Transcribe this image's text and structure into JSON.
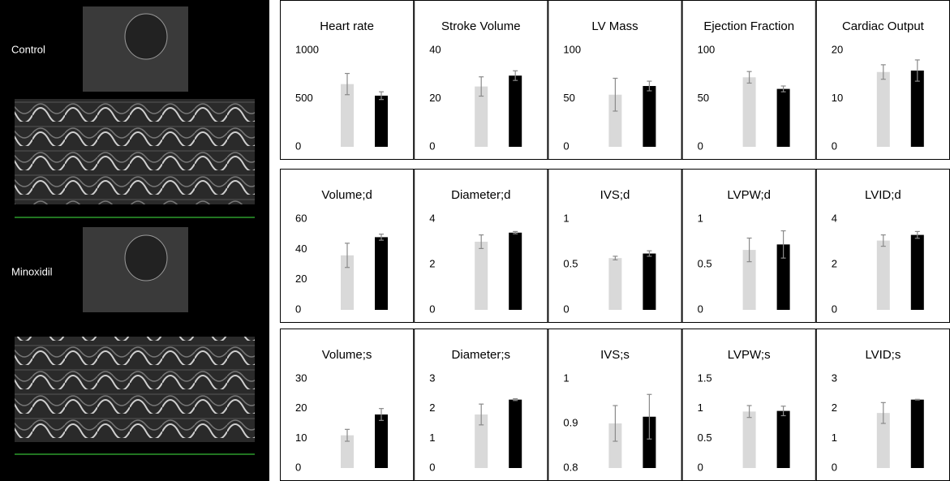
{
  "panel_labels": [
    "Control",
    "Minoxidil"
  ],
  "chart_data": [
    {
      "type": "bar",
      "title": "Heart rate",
      "categories": [
        null,
        null
      ],
      "values": [
        650,
        530
      ],
      "errors": [
        110,
        40
      ],
      "colors": [
        "#d9d9d9",
        "#000000"
      ],
      "ylim": [
        0,
        1000
      ],
      "yticks": [
        0,
        500,
        1000
      ]
    },
    {
      "type": "bar",
      "title": "Stroke Volume",
      "categories": [
        null,
        null
      ],
      "values": [
        25,
        29.5
      ],
      "errors": [
        4,
        2
      ],
      "colors": [
        "#d9d9d9",
        "#000000"
      ],
      "ylim": [
        0,
        40
      ],
      "yticks": [
        0,
        20,
        40
      ]
    },
    {
      "type": "bar",
      "title": "LV Mass",
      "categories": [
        null,
        null
      ],
      "values": [
        54,
        63
      ],
      "errors": [
        17,
        5
      ],
      "colors": [
        "#d9d9d9",
        "#000000"
      ],
      "ylim": [
        0,
        100
      ],
      "yticks": [
        0,
        50,
        100
      ]
    },
    {
      "type": "bar",
      "title": "Ejection Fraction",
      "categories": [
        null,
        null
      ],
      "values": [
        72,
        60
      ],
      "errors": [
        6,
        3
      ],
      "colors": [
        "#d9d9d9",
        "#000000"
      ],
      "ylim": [
        0,
        100
      ],
      "yticks": [
        0,
        50,
        100
      ]
    },
    {
      "type": "bar",
      "title": "Cardiac Output",
      "categories": [
        null,
        null
      ],
      "values": [
        15.5,
        15.8
      ],
      "errors": [
        1.5,
        2.2
      ],
      "colors": [
        "#d9d9d9",
        "#000000"
      ],
      "ylim": [
        0,
        20
      ],
      "yticks": [
        0,
        10,
        20
      ]
    },
    {
      "type": "bar",
      "title": "Volume;d",
      "categories": [
        null,
        null
      ],
      "values": [
        36,
        48
      ],
      "errors": [
        8,
        2
      ],
      "colors": [
        "#d9d9d9",
        "#000000"
      ],
      "ylim": [
        0,
        60
      ],
      "yticks": [
        0,
        20,
        40,
        60
      ]
    },
    {
      "type": "bar",
      "title": "Diameter;d",
      "categories": [
        null,
        null
      ],
      "values": [
        3.0,
        3.4
      ],
      "errors": [
        0.3,
        0.05
      ],
      "colors": [
        "#d9d9d9",
        "#000000"
      ],
      "ylim": [
        0,
        4
      ],
      "yticks": [
        0,
        2,
        4
      ]
    },
    {
      "type": "bar",
      "title": "IVS;d",
      "categories": [
        null,
        null
      ],
      "values": [
        0.57,
        0.62
      ],
      "errors": [
        0.02,
        0.03
      ],
      "colors": [
        "#d9d9d9",
        "#000000"
      ],
      "ylim": [
        0,
        1
      ],
      "yticks": [
        0,
        0.5,
        1
      ]
    },
    {
      "type": "bar",
      "title": "LVPW;d",
      "categories": [
        null,
        null
      ],
      "values": [
        0.66,
        0.72
      ],
      "errors": [
        0.13,
        0.15
      ],
      "colors": [
        "#d9d9d9",
        "#000000"
      ],
      "ylim": [
        0,
        1
      ],
      "yticks": [
        0,
        0.5,
        1
      ]
    },
    {
      "type": "bar",
      "title": "LVID;d",
      "categories": [
        null,
        null
      ],
      "values": [
        3.05,
        3.3
      ],
      "errors": [
        0.25,
        0.15
      ],
      "colors": [
        "#d9d9d9",
        "#000000"
      ],
      "ylim": [
        0,
        4
      ],
      "yticks": [
        0,
        2,
        4
      ]
    },
    {
      "type": "bar",
      "title": "Volume;s",
      "categories": [
        null,
        null
      ],
      "values": [
        11,
        18
      ],
      "errors": [
        2,
        2
      ],
      "colors": [
        "#d9d9d9",
        "#000000"
      ],
      "ylim": [
        0,
        30
      ],
      "yticks": [
        0,
        10,
        20,
        30
      ]
    },
    {
      "type": "bar",
      "title": "Diameter;s",
      "categories": [
        null,
        null
      ],
      "values": [
        1.8,
        2.3
      ],
      "errors": [
        0.35,
        0.03
      ],
      "colors": [
        "#d9d9d9",
        "#000000"
      ],
      "ylim": [
        0,
        3
      ],
      "yticks": [
        0,
        1,
        2,
        3
      ]
    },
    {
      "type": "bar",
      "title": "IVS;s",
      "categories": [
        null,
        null
      ],
      "values": [
        0.9,
        0.915
      ],
      "errors": [
        0.04,
        0.05
      ],
      "colors": [
        "#d9d9d9",
        "#000000"
      ],
      "ylim": [
        0.8,
        1
      ],
      "yticks": [
        0.8,
        0.9,
        1
      ]
    },
    {
      "type": "bar",
      "title": "LVPW;s",
      "categories": [
        null,
        null
      ],
      "values": [
        0.95,
        0.96
      ],
      "errors": [
        0.1,
        0.08
      ],
      "colors": [
        "#d9d9d9",
        "#000000"
      ],
      "ylim": [
        0,
        1.5
      ],
      "yticks": [
        0,
        0.5,
        1,
        1.5
      ]
    },
    {
      "type": "bar",
      "title": "LVID;s",
      "categories": [
        null,
        null
      ],
      "values": [
        1.85,
        2.3
      ],
      "errors": [
        0.35,
        0.01
      ],
      "colors": [
        "#d9d9d9",
        "#000000"
      ],
      "ylim": [
        0,
        3
      ],
      "yticks": [
        0,
        1,
        2,
        3
      ]
    }
  ]
}
